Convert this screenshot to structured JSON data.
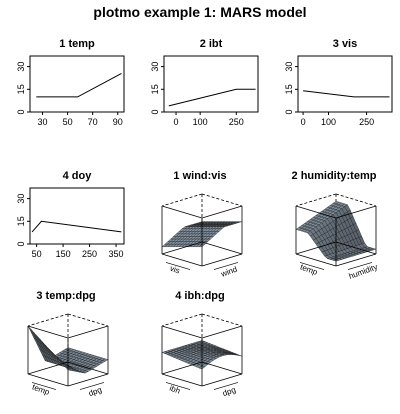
{
  "title": "plotmo example 1: MARS model",
  "chart_data": [
    {
      "type": "line",
      "title": "1 temp",
      "x": [
        25,
        58,
        93
      ],
      "y": [
        10,
        10,
        25.5
      ],
      "xlim": [
        20,
        95
      ],
      "ylim": [
        0,
        37
      ],
      "xticks": [
        "30",
        "50",
        "70",
        "90"
      ],
      "yticks": [
        "0",
        "15",
        "30"
      ]
    },
    {
      "type": "line",
      "title": "2 ibt",
      "x": [
        -30,
        250,
        330
      ],
      "y": [
        4,
        15,
        15
      ],
      "xlim": [
        -50,
        340
      ],
      "ylim": [
        0,
        37
      ],
      "xticks": [
        "0",
        "100",
        "250"
      ],
      "yticks": [
        "0",
        "15",
        "30"
      ]
    },
    {
      "type": "line",
      "title": "3 vis",
      "x": [
        0,
        200,
        340
      ],
      "y": [
        14,
        10,
        10
      ],
      "xlim": [
        -20,
        350
      ],
      "ylim": [
        0,
        37
      ],
      "xticks": [
        "0",
        "100",
        "250"
      ],
      "yticks": [
        "0",
        "15",
        "30"
      ]
    },
    {
      "type": "line",
      "title": "4 doy",
      "x": [
        33,
        68,
        370
      ],
      "y": [
        8,
        15,
        8
      ],
      "xlim": [
        25,
        380
      ],
      "ylim": [
        0,
        37
      ],
      "xticks": [
        "50",
        "150",
        "250",
        "350"
      ],
      "yticks": [
        "0",
        "15",
        "30"
      ]
    },
    {
      "type": "surface",
      "title": "1 wind:vis",
      "xlabel": "wind",
      "ylabel": "vis"
    },
    {
      "type": "surface",
      "title": "2 humidity:temp",
      "xlabel": "humidity",
      "ylabel": "temp"
    },
    {
      "type": "surface",
      "title": "3 temp:dpg",
      "xlabel": "dpg",
      "ylabel": "temp"
    },
    {
      "type": "surface",
      "title": "4 ibh:dpg",
      "xlabel": "dpg",
      "ylabel": "ibh"
    }
  ]
}
